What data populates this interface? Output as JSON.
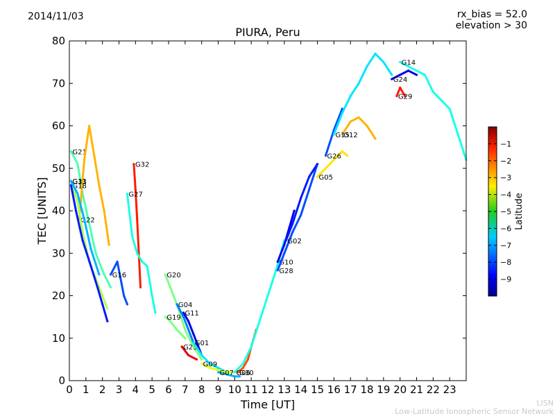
{
  "header": {
    "date": "2014/11/03",
    "rx_bias": "rx_bias = 52.0",
    "elevation": "elevation > 30"
  },
  "footer": {
    "line1": "LISN",
    "line2": "Low-Latitude Ionospheric Sensor Network"
  },
  "chart_data": {
    "type": "scatter",
    "title": "PIURA, Peru",
    "xlabel": "Time [UT]",
    "ylabel": "TEC [UNITS]",
    "xlim": [
      0,
      24
    ],
    "ylim": [
      0,
      80
    ],
    "xticks": [
      0,
      1,
      2,
      3,
      4,
      5,
      6,
      7,
      8,
      9,
      10,
      11,
      12,
      13,
      14,
      15,
      16,
      17,
      18,
      19,
      20,
      21,
      22,
      23
    ],
    "yticks": [
      0,
      10,
      20,
      30,
      40,
      50,
      60,
      70,
      80
    ],
    "grid": false,
    "colorbar": {
      "label": "Latitude",
      "range": [
        -10,
        0
      ],
      "ticks": [
        -9,
        -8,
        -7,
        -6,
        -5,
        -4,
        -3,
        -2,
        -1
      ]
    },
    "series": [
      {
        "name": "G21",
        "lat": -5.5,
        "points": [
          [
            0.1,
            54
          ],
          [
            0.5,
            51
          ],
          [
            0.8,
            44
          ],
          [
            1.2,
            37
          ],
          [
            1.6,
            30
          ],
          [
            2.1,
            25
          ],
          [
            2.5,
            22
          ]
        ]
      },
      {
        "name": "G22",
        "lat": -3.0,
        "points": [
          [
            0.6,
            38
          ],
          [
            0.9,
            52
          ],
          [
            1.2,
            60
          ],
          [
            1.5,
            53
          ],
          [
            1.8,
            46
          ],
          [
            2.1,
            40
          ],
          [
            2.4,
            32
          ]
        ]
      },
      {
        "name": "G31",
        "lat": -4.5,
        "points": [
          [
            0.1,
            47
          ],
          [
            0.5,
            42
          ],
          [
            0.8,
            35
          ],
          [
            1.2,
            28
          ],
          [
            1.6,
            24
          ],
          [
            2.0,
            20
          ],
          [
            2.3,
            17
          ]
        ]
      },
      {
        "name": "G18",
        "lat": -8.5,
        "points": [
          [
            0.1,
            46
          ],
          [
            0.4,
            40
          ],
          [
            0.8,
            33
          ],
          [
            1.3,
            27
          ],
          [
            1.7,
            22
          ],
          [
            2.0,
            18
          ],
          [
            2.3,
            14
          ]
        ]
      },
      {
        "name": "G13",
        "lat": -7.0,
        "points": [
          [
            0.1,
            47
          ],
          [
            0.5,
            44
          ],
          [
            0.9,
            38
          ],
          [
            1.3,
            31
          ],
          [
            1.8,
            25
          ]
        ]
      },
      {
        "name": "G16",
        "lat": -8.0,
        "points": [
          [
            2.5,
            25
          ],
          [
            2.9,
            28
          ],
          [
            3.3,
            20
          ],
          [
            3.5,
            18
          ]
        ]
      },
      {
        "name": "G32",
        "lat": -1.5,
        "points": [
          [
            3.9,
            51
          ],
          [
            4.0,
            45
          ],
          [
            4.1,
            38
          ],
          [
            4.2,
            30
          ],
          [
            4.3,
            22
          ]
        ]
      },
      {
        "name": "G27",
        "lat": -6.0,
        "points": [
          [
            3.5,
            44
          ],
          [
            3.8,
            34
          ],
          [
            4.1,
            30
          ],
          [
            4.4,
            28
          ],
          [
            4.7,
            27
          ],
          [
            5.0,
            20
          ],
          [
            5.2,
            16
          ]
        ]
      },
      {
        "name": "G20",
        "lat": -5.0,
        "points": [
          [
            5.8,
            25
          ],
          [
            6.1,
            22
          ],
          [
            6.5,
            18
          ],
          [
            7.0,
            12
          ],
          [
            7.5,
            8
          ],
          [
            8.0,
            5
          ]
        ]
      },
      {
        "name": "G19",
        "lat": -5.0,
        "points": [
          [
            5.8,
            15
          ],
          [
            6.1,
            14
          ],
          [
            6.5,
            12
          ],
          [
            7.0,
            10
          ]
        ]
      },
      {
        "name": "G11",
        "lat": -9.0,
        "points": [
          [
            6.9,
            16
          ],
          [
            7.2,
            14
          ],
          [
            7.5,
            11
          ],
          [
            7.8,
            8
          ],
          [
            8.0,
            6
          ]
        ]
      },
      {
        "name": "G04",
        "lat": -7.5,
        "points": [
          [
            6.5,
            18
          ],
          [
            6.9,
            15
          ],
          [
            7.2,
            12
          ],
          [
            7.5,
            9
          ]
        ]
      },
      {
        "name": "G23",
        "lat": -1.0,
        "points": [
          [
            6.8,
            8
          ],
          [
            7.2,
            6
          ],
          [
            7.7,
            5
          ]
        ]
      },
      {
        "name": "G01",
        "lat": -6.5,
        "points": [
          [
            7.5,
            9
          ],
          [
            8.0,
            6
          ],
          [
            8.5,
            4
          ],
          [
            9.0,
            3
          ],
          [
            9.5,
            2
          ]
        ]
      },
      {
        "name": "G09",
        "lat": -4.0,
        "points": [
          [
            8.0,
            4
          ],
          [
            8.5,
            3
          ],
          [
            9.0,
            2.5
          ],
          [
            9.5,
            2
          ],
          [
            10.0,
            2
          ]
        ]
      },
      {
        "name": "G07",
        "lat": -7.0,
        "points": [
          [
            9.0,
            2
          ],
          [
            9.5,
            1.5
          ],
          [
            10.0,
            1
          ],
          [
            10.3,
            1
          ]
        ]
      },
      {
        "name": "G30",
        "lat": -2.0,
        "points": [
          [
            10.2,
            2
          ],
          [
            10.5,
            3
          ],
          [
            10.8,
            5
          ],
          [
            11.0,
            8
          ],
          [
            11.3,
            12
          ]
        ]
      },
      {
        "name": "G06",
        "lat": -6.0,
        "points": [
          [
            10.0,
            2
          ],
          [
            10.5,
            4
          ],
          [
            11.0,
            8
          ],
          [
            11.5,
            14
          ],
          [
            12.0,
            20
          ],
          [
            12.5,
            26
          ],
          [
            13.0,
            33
          ]
        ]
      },
      {
        "name": "G10",
        "lat": -9.0,
        "points": [
          [
            12.6,
            28
          ],
          [
            13.0,
            32
          ],
          [
            13.3,
            36
          ],
          [
            13.6,
            40
          ]
        ]
      },
      {
        "name": "G28",
        "lat": -8.0,
        "points": [
          [
            12.6,
            26
          ],
          [
            13.0,
            30
          ],
          [
            13.5,
            35
          ],
          [
            14.0,
            39
          ],
          [
            14.5,
            45
          ],
          [
            15.0,
            51
          ]
        ]
      },
      {
        "name": "G02",
        "lat": -8.5,
        "points": [
          [
            13.1,
            33
          ],
          [
            13.5,
            37
          ],
          [
            14.0,
            43
          ],
          [
            14.5,
            48
          ],
          [
            15.0,
            51
          ]
        ]
      },
      {
        "name": "G05",
        "lat": -3.5,
        "points": [
          [
            15.0,
            48
          ],
          [
            15.5,
            50
          ],
          [
            16.0,
            52
          ],
          [
            16.5,
            54
          ],
          [
            16.8,
            53
          ]
        ]
      },
      {
        "name": "G26",
        "lat": -8.0,
        "points": [
          [
            15.5,
            53
          ],
          [
            16.0,
            59
          ],
          [
            16.5,
            64
          ]
        ]
      },
      {
        "name": "G12",
        "lat": -3.0,
        "points": [
          [
            16.5,
            58
          ],
          [
            17.0,
            61
          ],
          [
            17.5,
            62
          ],
          [
            18.0,
            60
          ],
          [
            18.5,
            57
          ]
        ]
      },
      {
        "name": "G15",
        "lat": -6.5,
        "points": [
          [
            16.0,
            58
          ],
          [
            16.5,
            63
          ],
          [
            17.0,
            67
          ],
          [
            17.5,
            70
          ],
          [
            18.0,
            74
          ],
          [
            18.5,
            77
          ],
          [
            19.0,
            75
          ],
          [
            19.5,
            72
          ]
        ]
      },
      {
        "name": "G24",
        "lat": -9.0,
        "points": [
          [
            19.5,
            71
          ],
          [
            20.0,
            72
          ],
          [
            20.5,
            73
          ],
          [
            21.0,
            72
          ]
        ]
      },
      {
        "name": "G29",
        "lat": -1.5,
        "points": [
          [
            19.8,
            67
          ],
          [
            20.0,
            69
          ],
          [
            20.3,
            67
          ]
        ]
      },
      {
        "name": "G14",
        "lat": -6.0,
        "points": [
          [
            20.0,
            75
          ],
          [
            20.5,
            74
          ],
          [
            21.0,
            73
          ],
          [
            21.5,
            72
          ],
          [
            22.0,
            68
          ],
          [
            22.5,
            66
          ],
          [
            23.0,
            64
          ],
          [
            23.5,
            58
          ],
          [
            24.0,
            52
          ]
        ]
      }
    ]
  }
}
